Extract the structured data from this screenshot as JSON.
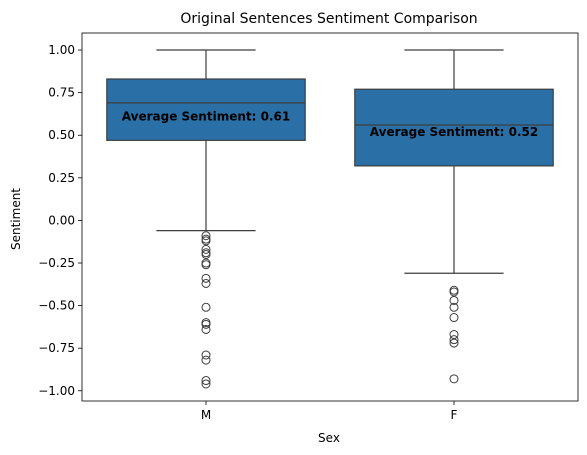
{
  "chart_data": {
    "type": "box",
    "title": "Original Sentences Sentiment Comparison",
    "xlabel": "Sex",
    "ylabel": "Sentiment",
    "categories": [
      "M",
      "F"
    ],
    "ylim": [
      -1.06,
      1.1
    ],
    "yticks": [
      1.0,
      0.75,
      0.5,
      0.25,
      0.0,
      -0.25,
      -0.5,
      -0.75,
      -1.0
    ],
    "ytick_labels": [
      "1.00",
      "0.75",
      "0.50",
      "0.25",
      "0.00",
      "−0.25",
      "−0.50",
      "−0.75",
      "−1.00"
    ],
    "box_color": "#2a6fa6",
    "line_color": "#3d3d3d",
    "boxes": [
      {
        "category": "M",
        "whisker_high": 1.0,
        "q3": 0.83,
        "median": 0.69,
        "q1": 0.47,
        "whisker_low": -0.06,
        "outliers": [
          -0.09,
          -0.11,
          -0.12,
          -0.17,
          -0.19,
          -0.2,
          -0.25,
          -0.26,
          -0.34,
          -0.37,
          -0.51,
          -0.6,
          -0.61,
          -0.64,
          -0.79,
          -0.82,
          -0.94,
          -0.96
        ],
        "annotation": "Average Sentiment: 0.61",
        "mean": 0.61
      },
      {
        "category": "F",
        "whisker_high": 1.0,
        "q3": 0.77,
        "median": 0.56,
        "q1": 0.32,
        "whisker_low": -0.31,
        "outliers": [
          -0.41,
          -0.42,
          -0.47,
          -0.51,
          -0.57,
          -0.67,
          -0.7,
          -0.72,
          -0.93
        ],
        "annotation": "Average Sentiment: 0.52",
        "mean": 0.52
      }
    ]
  }
}
